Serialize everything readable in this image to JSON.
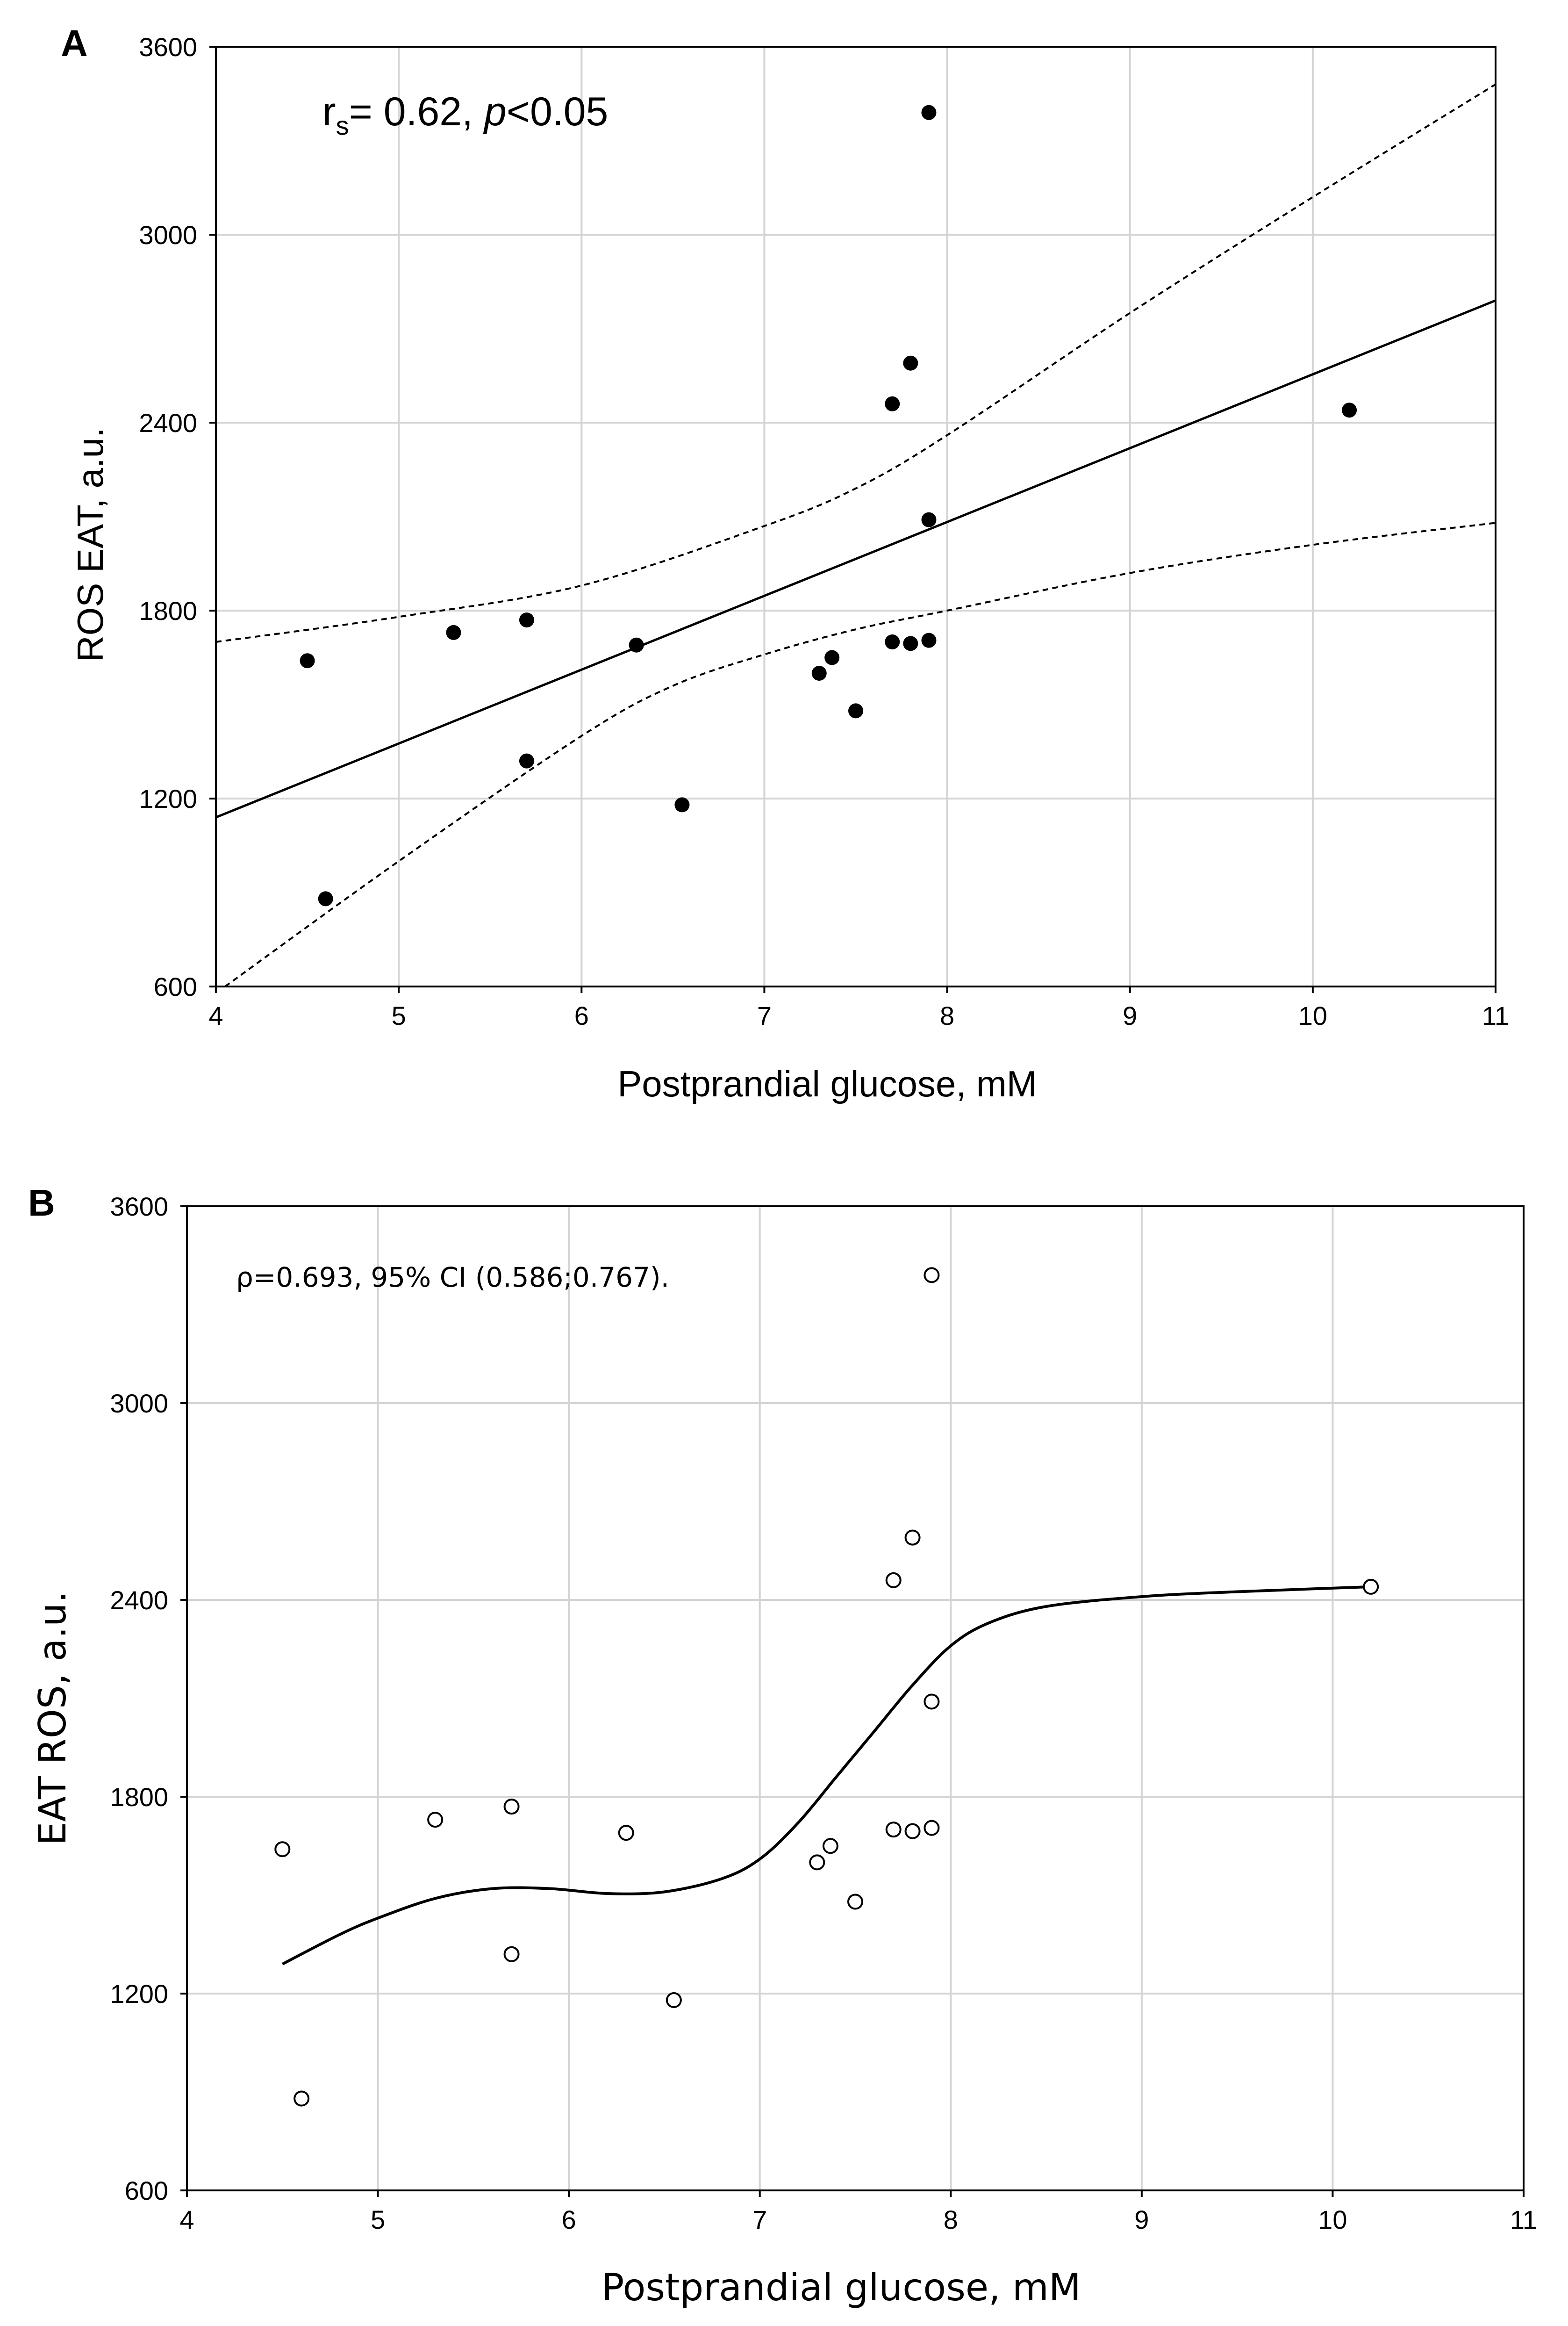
{
  "chart_data": [
    {
      "panel_label": "A",
      "type": "scatter",
      "title": "",
      "xlabel": "Postprandial glucose, mM",
      "ylabel": "ROS EAT, a.u.",
      "xlim": [
        4,
        11
      ],
      "ylim": [
        600,
        3600
      ],
      "xticks": [
        "4",
        "5",
        "6",
        "7",
        "8",
        "9",
        "10",
        "11"
      ],
      "yticks": [
        "600",
        "1200",
        "1800",
        "2400",
        "3000",
        "3600"
      ],
      "grid": true,
      "annotation": {
        "r": "r",
        "sub": "s",
        "eq": "= 0.62, ",
        "p": "p",
        "rest": "<0.05"
      },
      "marker": "filled",
      "points": [
        [
          4.5,
          1640
        ],
        [
          4.6,
          880
        ],
        [
          5.3,
          1730
        ],
        [
          5.7,
          1770
        ],
        [
          5.7,
          1320
        ],
        [
          6.3,
          1690
        ],
        [
          6.55,
          1180
        ],
        [
          7.3,
          1600
        ],
        [
          7.37,
          1650
        ],
        [
          7.5,
          1480
        ],
        [
          7.7,
          1700
        ],
        [
          7.8,
          1695
        ],
        [
          7.9,
          1705
        ],
        [
          7.7,
          2460
        ],
        [
          7.8,
          2590
        ],
        [
          7.9,
          2090
        ],
        [
          7.9,
          3390
        ],
        [
          10.2,
          2440
        ]
      ],
      "fit_line": [
        [
          4,
          1140
        ],
        [
          11,
          2790
        ]
      ],
      "ci_upper": [
        [
          4,
          1700
        ],
        [
          5,
          1780
        ],
        [
          6,
          1880
        ],
        [
          7,
          2070
        ],
        [
          7.5,
          2190
        ],
        [
          8,
          2360
        ],
        [
          9,
          2750
        ],
        [
          10,
          3120
        ],
        [
          11,
          3480
        ]
      ],
      "ci_lower": [
        [
          4.05,
          600
        ],
        [
          5,
          1000
        ],
        [
          6,
          1400
        ],
        [
          6.5,
          1560
        ],
        [
          7,
          1660
        ],
        [
          7.5,
          1740
        ],
        [
          8,
          1800
        ],
        [
          9,
          1920
        ],
        [
          10,
          2010
        ],
        [
          11,
          2080
        ]
      ]
    },
    {
      "panel_label": "B",
      "type": "scatter",
      "title": "",
      "xlabel": "Postprandial glucose, mM",
      "ylabel": "EAT ROS, a.u.",
      "xlim": [
        4,
        11
      ],
      "ylim": [
        600,
        3600
      ],
      "xticks": [
        "4",
        "5",
        "6",
        "7",
        "8",
        "9",
        "10",
        "11"
      ],
      "yticks": [
        "600",
        "1200",
        "1800",
        "2400",
        "3000",
        "3600"
      ],
      "grid": true,
      "annotation": "ρ=0.693, 95% CI (0.586;0.767).",
      "marker": "open",
      "points": [
        [
          4.5,
          1640
        ],
        [
          4.6,
          880
        ],
        [
          5.3,
          1730
        ],
        [
          5.7,
          1770
        ],
        [
          5.7,
          1320
        ],
        [
          6.3,
          1690
        ],
        [
          6.55,
          1180
        ],
        [
          7.3,
          1600
        ],
        [
          7.37,
          1650
        ],
        [
          7.5,
          1480
        ],
        [
          7.7,
          1700
        ],
        [
          7.8,
          1695
        ],
        [
          7.9,
          1705
        ],
        [
          7.7,
          2460
        ],
        [
          7.8,
          2590
        ],
        [
          7.9,
          2090
        ],
        [
          7.9,
          3390
        ],
        [
          10.2,
          2440
        ]
      ],
      "smooth_curve": [
        [
          4.5,
          1290
        ],
        [
          4.8,
          1380
        ],
        [
          5.0,
          1430
        ],
        [
          5.3,
          1490
        ],
        [
          5.6,
          1520
        ],
        [
          5.9,
          1520
        ],
        [
          6.2,
          1505
        ],
        [
          6.5,
          1510
        ],
        [
          6.8,
          1550
        ],
        [
          7.0,
          1610
        ],
        [
          7.2,
          1720
        ],
        [
          7.4,
          1860
        ],
        [
          7.6,
          2000
        ],
        [
          7.8,
          2140
        ],
        [
          8.0,
          2260
        ],
        [
          8.2,
          2330
        ],
        [
          8.5,
          2380
        ],
        [
          9.0,
          2410
        ],
        [
          9.5,
          2425
        ],
        [
          10.2,
          2440
        ]
      ]
    }
  ]
}
